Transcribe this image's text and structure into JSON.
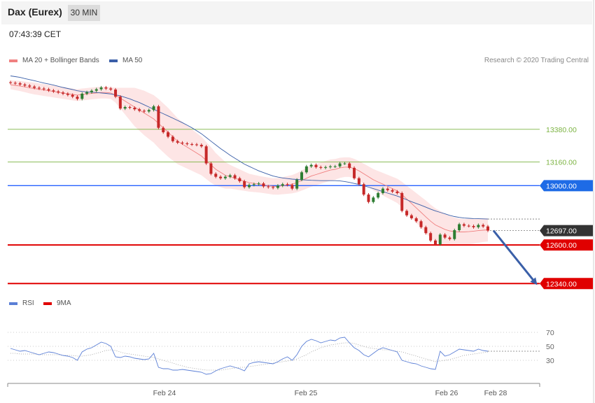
{
  "header": {
    "title": "Dax (Eurex)",
    "timeframe": "30 MIN",
    "timestamp": "07:43:39 CET"
  },
  "legend": {
    "ma20_label": "MA 20 + Bollinger Bands",
    "ma50_label": "MA 50",
    "rsi_label": "RSI",
    "rsi_ma_label": "9MA",
    "credit": "Research © 2020 Trading Central"
  },
  "colors": {
    "ma20": "#f08080",
    "band_fill": "#fde0e0",
    "ma50": "#3a5fa8",
    "up_candle": "#2e7d32",
    "down_candle": "#c62828",
    "resistance": "#7cb342",
    "pivot": "#2962ff",
    "support": "#e00000",
    "current": "#333333",
    "rsi": "#5b7fd6"
  },
  "chart_data": [
    {
      "type": "candlestick",
      "x_ticks": [
        "Feb 24",
        "Feb 25",
        "Feb 26",
        "Feb 28"
      ],
      "ylim": [
        12280,
        13780
      ],
      "levels": [
        {
          "label": "13380.00",
          "value": 13380,
          "kind": "resistance"
        },
        {
          "label": "13160.00",
          "value": 13160,
          "kind": "resistance"
        },
        {
          "label": "13000.00",
          "value": 13000,
          "kind": "pivot"
        },
        {
          "label": "12697.00",
          "value": 12697,
          "kind": "current"
        },
        {
          "label": "12600.00",
          "value": 12600,
          "kind": "support"
        },
        {
          "label": "12340.00",
          "value": 12340,
          "kind": "support"
        }
      ],
      "close": [
        13693,
        13690,
        13682,
        13675,
        13668,
        13660,
        13655,
        13650,
        13642,
        13635,
        13628,
        13620,
        13612,
        13600,
        13585,
        13620,
        13630,
        13640,
        13650,
        13662,
        13655,
        13648,
        13600,
        13520,
        13530,
        13525,
        13515,
        13505,
        13500,
        13510,
        13535,
        13390,
        13360,
        13330,
        13300,
        13290,
        13285,
        13280,
        13278,
        13275,
        13265,
        13150,
        13080,
        13060,
        13050,
        13060,
        13070,
        13050,
        13030,
        12990,
        13005,
        13010,
        13015,
        12995,
        12990,
        12985,
        13000,
        13010,
        13005,
        12980,
        13040,
        13090,
        13130,
        13140,
        13125,
        13120,
        13125,
        13130,
        13130,
        13150,
        13150,
        13120,
        13050,
        13010,
        12940,
        12890,
        12920,
        12950,
        12980,
        12970,
        12960,
        12950,
        12830,
        12800,
        12780,
        12760,
        12720,
        12680,
        12630,
        12605,
        12670,
        12650,
        12640,
        12700,
        12740,
        12730,
        12728,
        12720,
        12735,
        12725,
        12697
      ],
      "ma20": [
        13680,
        13676,
        13672,
        13666,
        13660,
        13655,
        13650,
        13645,
        13640,
        13635,
        13630,
        13625,
        13620,
        13615,
        13610,
        13615,
        13618,
        13622,
        13625,
        13628,
        13628,
        13625,
        13610,
        13590,
        13570,
        13550,
        13530,
        13510,
        13490,
        13470,
        13450,
        13420,
        13390,
        13360,
        13330,
        13300,
        13280,
        13260,
        13240,
        13220,
        13200,
        13170,
        13140,
        13110,
        13090,
        13070,
        13060,
        13050,
        13040,
        13030,
        13020,
        13015,
        13010,
        13005,
        13000,
        12995,
        12995,
        13000,
        13005,
        13010,
        13020,
        13035,
        13050,
        13065,
        13075,
        13085,
        13095,
        13105,
        13110,
        13120,
        13125,
        13125,
        13115,
        13100,
        13080,
        13060,
        13040,
        13025,
        13010,
        12995,
        12980,
        12965,
        12940,
        12910,
        12880,
        12850,
        12820,
        12790,
        12760,
        12735,
        12720,
        12705,
        12695,
        12690,
        12688,
        12688,
        12690,
        12693,
        12697,
        12700,
        12702
      ],
      "ma50": [
        13740,
        13735,
        13730,
        13722,
        13715,
        13708,
        13700,
        13692,
        13685,
        13678,
        13670,
        13662,
        13655,
        13648,
        13640,
        13635,
        13632,
        13630,
        13628,
        13625,
        13622,
        13618,
        13612,
        13605,
        13595,
        13585,
        13572,
        13560,
        13545,
        13530,
        13515,
        13500,
        13485,
        13470,
        13455,
        13440,
        13425,
        13408,
        13390,
        13370,
        13350,
        13325,
        13300,
        13275,
        13250,
        13228,
        13205,
        13185,
        13165,
        13145,
        13130,
        13115,
        13100,
        13088,
        13076,
        13065,
        13058,
        13052,
        13048,
        13044,
        13042,
        13040,
        13038,
        13036,
        13035,
        13034,
        13034,
        13034,
        13034,
        13032,
        13028,
        13022,
        13015,
        13008,
        13000,
        12990,
        12980,
        12970,
        12960,
        12950,
        12940,
        12930,
        12918,
        12905,
        12892,
        12880,
        12868,
        12855,
        12842,
        12830,
        12820,
        12810,
        12800,
        12792,
        12786,
        12782,
        12780,
        12778,
        12777,
        12776,
        12775
      ],
      "band_width": [
        30,
        32,
        34,
        36,
        38,
        40,
        40,
        40,
        40,
        40,
        40,
        40,
        40,
        40,
        40,
        40,
        40,
        40,
        40,
        40,
        40,
        40,
        50,
        70,
        90,
        110,
        130,
        140,
        150,
        155,
        160,
        165,
        165,
        165,
        160,
        155,
        150,
        145,
        140,
        135,
        130,
        125,
        120,
        110,
        100,
        90,
        80,
        75,
        70,
        65,
        60,
        58,
        56,
        55,
        55,
        55,
        56,
        58,
        60,
        62,
        65,
        68,
        70,
        72,
        72,
        72,
        72,
        72,
        70,
        68,
        66,
        66,
        66,
        66,
        68,
        70,
        72,
        74,
        76,
        78,
        80,
        82,
        86,
        90,
        95,
        100,
        105,
        110,
        112,
        112,
        110,
        105,
        100,
        95,
        90,
        88,
        86,
        84,
        82,
        80,
        78
      ]
    },
    {
      "type": "line",
      "name": "RSI",
      "ylim": [
        0,
        100
      ],
      "y_ticks": [
        "70",
        "50",
        "30"
      ],
      "rsi": [
        47,
        45,
        43,
        44,
        42,
        40,
        38,
        40,
        42,
        41,
        39,
        37,
        36,
        34,
        30,
        42,
        46,
        48,
        52,
        56,
        54,
        50,
        35,
        34,
        36,
        35,
        33,
        32,
        31,
        32,
        40,
        20,
        18,
        18,
        16,
        16,
        17,
        16,
        15,
        14,
        13,
        10,
        11,
        15,
        18,
        20,
        22,
        20,
        18,
        15,
        25,
        27,
        28,
        27,
        26,
        25,
        28,
        32,
        35,
        30,
        38,
        50,
        57,
        60,
        58,
        55,
        57,
        59,
        58,
        62,
        63,
        55,
        48,
        44,
        38,
        35,
        40,
        45,
        48,
        46,
        44,
        42,
        30,
        28,
        26,
        25,
        22,
        20,
        18,
        17,
        43,
        36,
        38,
        42,
        46,
        45,
        44,
        43,
        46,
        44,
        43
      ],
      "rsi_ma": [
        40,
        40,
        39,
        39,
        39,
        39,
        38,
        38,
        38,
        38,
        38,
        37,
        37,
        37,
        36,
        36,
        37,
        38,
        40,
        42,
        44,
        45,
        44,
        42,
        40,
        39,
        38,
        37,
        36,
        35,
        34,
        32,
        30,
        28,
        26,
        24,
        22,
        20,
        19,
        18,
        17,
        16,
        16,
        16,
        16,
        17,
        18,
        19,
        20,
        20,
        21,
        22,
        23,
        24,
        25,
        26,
        27,
        28,
        29,
        30,
        32,
        35,
        38,
        42,
        45,
        48,
        50,
        52,
        53,
        54,
        55,
        55,
        54,
        52,
        50,
        48,
        47,
        46,
        45,
        45,
        44,
        43,
        42,
        40,
        38,
        36,
        34,
        32,
        30,
        28,
        29,
        30,
        31,
        33,
        35,
        37,
        38,
        39,
        40,
        41,
        42
      ]
    }
  ]
}
